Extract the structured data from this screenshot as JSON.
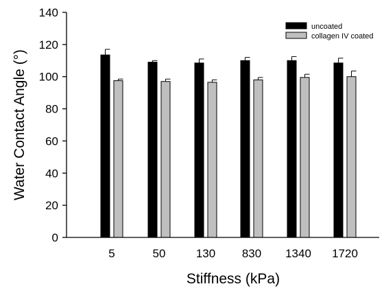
{
  "chart_data": {
    "type": "bar",
    "title": "",
    "xlabel": "Stiffness (kPa)",
    "ylabel": "Water Contact Angle (°)",
    "ylim": [
      0,
      140
    ],
    "yticks": [
      0,
      20,
      40,
      60,
      80,
      100,
      120,
      140
    ],
    "categories": [
      "5",
      "50",
      "130",
      "830",
      "1340",
      "1720"
    ],
    "grid": false,
    "legend_position": "top-right",
    "series": [
      {
        "name": "uncoated",
        "color": "#000000",
        "values": [
          113.5,
          109,
          108.5,
          110,
          110,
          108.5
        ],
        "error": [
          3.5,
          1,
          2.5,
          2,
          2.5,
          3
        ]
      },
      {
        "name": "collagen IV coated",
        "color": "#bfbfbf",
        "values": [
          97.5,
          97,
          96.5,
          98,
          99.5,
          100
        ],
        "error": [
          1,
          1.5,
          1.5,
          1.5,
          2,
          3.5
        ]
      }
    ]
  }
}
